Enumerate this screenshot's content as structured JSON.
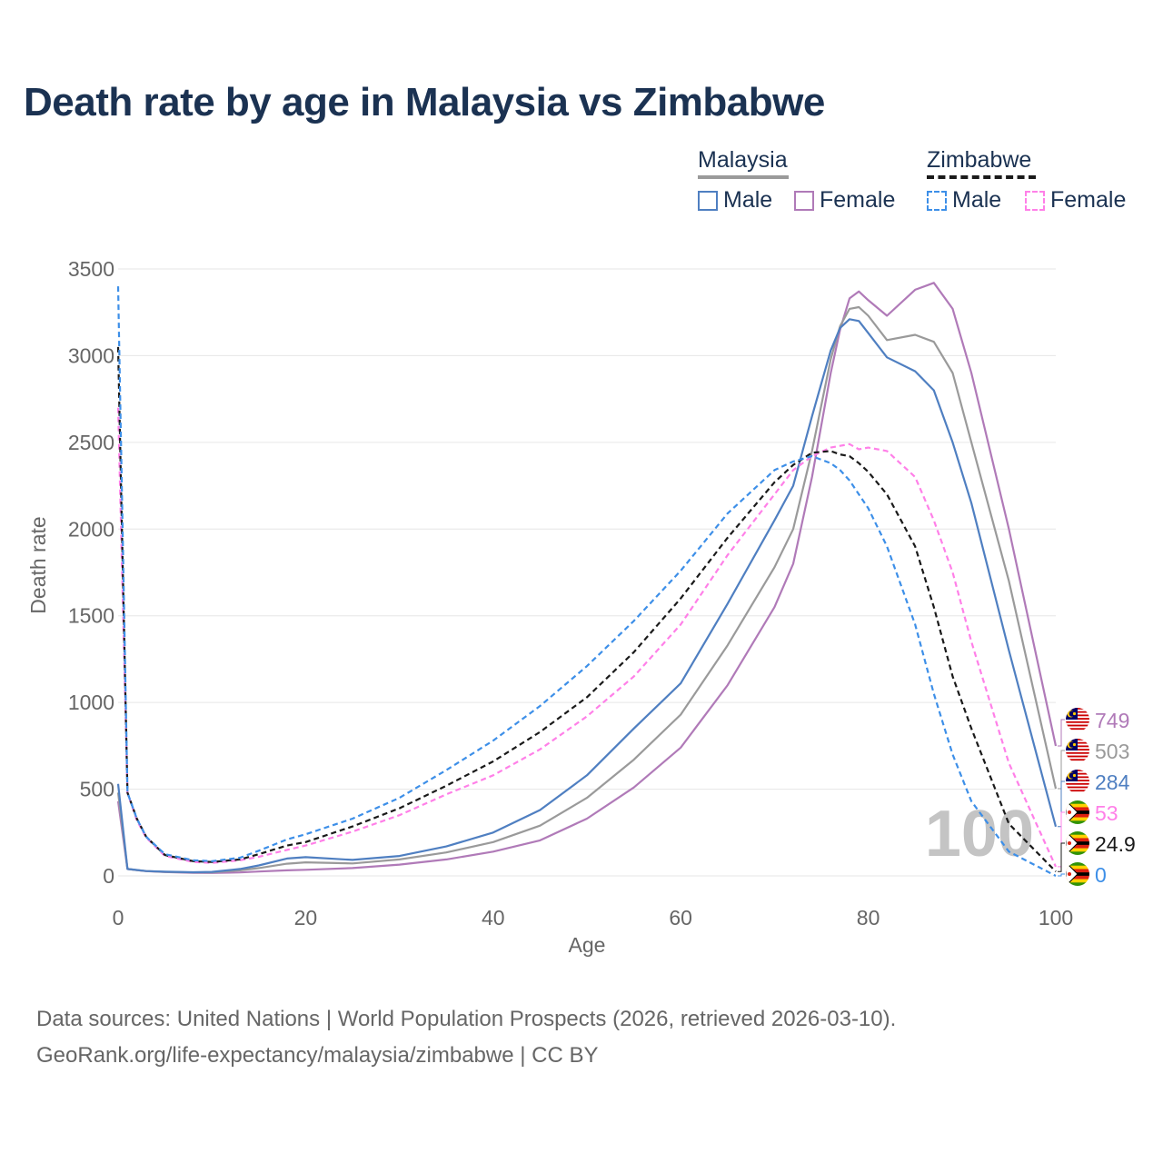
{
  "title": "Death rate by age in Malaysia vs Zimbabwe",
  "legend": {
    "groups": [
      {
        "country": "Malaysia",
        "items": [
          "Male",
          "Female"
        ]
      },
      {
        "country": "Zimbabwe",
        "items": [
          "Male",
          "Female"
        ]
      }
    ]
  },
  "footer": {
    "line1": "Data sources: United Nations | World Population Prospects (2026, retrieved 2026-03-10).",
    "line2": "GeoRank.org/life-expectancy/malaysia/zimbabwe | CC BY"
  },
  "colors": {
    "malaysia_male": "#4f7fc1",
    "malaysia_female": "#b07ab8",
    "malaysia_total": "#9a9a9a",
    "zimbabwe_male": "#3d8fe8",
    "zimbabwe_female": "#ff80e8",
    "zimbabwe_total": "#1a1a1a",
    "title": "#1b3252"
  },
  "chart_data": {
    "type": "line",
    "xlabel": "Age",
    "ylabel": "Death rate",
    "xlim": [
      0,
      100
    ],
    "ylim": [
      0,
      3500
    ],
    "xticks": [
      "0",
      "20",
      "40",
      "60",
      "80",
      "100"
    ],
    "yticks": [
      "0",
      "500",
      "1000",
      "1500",
      "2000",
      "2500",
      "3000",
      "3500"
    ],
    "watermark": "100",
    "x": [
      0,
      1,
      2,
      3,
      5,
      8,
      10,
      13,
      15,
      18,
      20,
      25,
      30,
      35,
      40,
      45,
      50,
      55,
      60,
      65,
      70,
      72,
      74,
      76,
      77,
      78,
      79,
      80,
      82,
      85,
      87,
      89,
      91,
      95,
      100
    ],
    "series": [
      {
        "name": "Malaysia Female",
        "country": "Malaysia",
        "sex": "Female",
        "dash": false,
        "color": "#b07ab8",
        "end_label": "749",
        "values": [
          430,
          40,
          33,
          27,
          22,
          18,
          17,
          20,
          25,
          32,
          35,
          45,
          65,
          95,
          140,
          205,
          330,
          510,
          740,
          1100,
          1550,
          1800,
          2300,
          2900,
          3150,
          3330,
          3370,
          3320,
          3230,
          3380,
          3420,
          3270,
          2900,
          2000,
          749
        ]
      },
      {
        "name": "Malaysia Total",
        "country": "Malaysia",
        "sex": "Total",
        "dash": false,
        "color": "#9a9a9a",
        "end_label": "503",
        "values": [
          480,
          40,
          33,
          28,
          23,
          20,
          20,
          32,
          45,
          70,
          78,
          72,
          95,
          135,
          195,
          290,
          450,
          670,
          930,
          1330,
          1780,
          2000,
          2450,
          2980,
          3170,
          3270,
          3280,
          3230,
          3090,
          3120,
          3080,
          2900,
          2500,
          1700,
          503
        ]
      },
      {
        "name": "Malaysia Male",
        "country": "Malaysia",
        "sex": "Male",
        "dash": false,
        "color": "#4f7fc1",
        "end_label": "284",
        "values": [
          530,
          40,
          34,
          28,
          24,
          21,
          23,
          40,
          60,
          100,
          108,
          92,
          115,
          170,
          250,
          380,
          580,
          850,
          1110,
          1570,
          2050,
          2250,
          2650,
          3030,
          3160,
          3210,
          3200,
          3130,
          2990,
          2910,
          2800,
          2500,
          2150,
          1300,
          284
        ]
      },
      {
        "name": "Zimbabwe Female",
        "country": "Zimbabwe",
        "sex": "Female",
        "dash": true,
        "color": "#ff80e8",
        "end_label": "53",
        "values": [
          2700,
          480,
          320,
          220,
          115,
          80,
          75,
          90,
          110,
          150,
          175,
          255,
          350,
          470,
          580,
          730,
          920,
          1150,
          1450,
          1850,
          2200,
          2340,
          2420,
          2470,
          2480,
          2490,
          2460,
          2470,
          2450,
          2300,
          2050,
          1750,
          1350,
          650,
          53
        ]
      },
      {
        "name": "Zimbabwe Total",
        "country": "Zimbabwe",
        "sex": "Total",
        "dash": true,
        "color": "#1a1a1a",
        "end_label": "24.9",
        "values": [
          3050,
          480,
          330,
          225,
          120,
          85,
          80,
          95,
          125,
          175,
          195,
          285,
          390,
          520,
          660,
          830,
          1030,
          1290,
          1600,
          1950,
          2270,
          2370,
          2440,
          2450,
          2430,
          2420,
          2380,
          2330,
          2200,
          1900,
          1550,
          1150,
          850,
          300,
          24.9
        ]
      },
      {
        "name": "Zimbabwe Male",
        "country": "Zimbabwe",
        "sex": "Male",
        "dash": true,
        "color": "#3d8fe8",
        "end_label": "0",
        "values": [
          3400,
          480,
          330,
          225,
          125,
          90,
          85,
          105,
          145,
          210,
          240,
          330,
          450,
          610,
          780,
          980,
          1210,
          1470,
          1760,
          2090,
          2340,
          2390,
          2420,
          2380,
          2340,
          2280,
          2200,
          2120,
          1900,
          1450,
          1050,
          700,
          430,
          140,
          0
        ]
      }
    ]
  }
}
